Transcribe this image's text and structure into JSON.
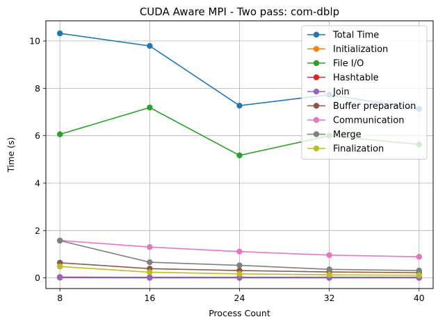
{
  "chart_data": {
    "type": "line",
    "title": "CUDA Aware MPI - Two pass: com-dblp",
    "xlabel": "Process Count",
    "ylabel": "Time (s)",
    "x": [
      8,
      16,
      24,
      32,
      40
    ],
    "xticks": [
      "8",
      "16",
      "24",
      "32",
      "40"
    ],
    "yticks": [
      "0",
      "2",
      "4",
      "6",
      "8",
      "10"
    ],
    "xlim": [
      6.75,
      41.25
    ],
    "ylim": [
      -0.45,
      10.85
    ],
    "grid": true,
    "legend_position": "top-right",
    "series": [
      {
        "name": "Total Time",
        "color": "#1f77b4",
        "values": [
          10.32,
          9.79,
          7.27,
          7.73,
          7.13
        ]
      },
      {
        "name": "Initialization",
        "color": "#ff7f0e",
        "values": [
          0.02,
          0.02,
          0.02,
          0.02,
          0.02
        ]
      },
      {
        "name": "File I/O",
        "color": "#2ca02c",
        "values": [
          6.06,
          7.19,
          5.17,
          6.0,
          5.63
        ]
      },
      {
        "name": "Hashtable",
        "color": "#d62728",
        "values": [
          0.03,
          0.02,
          0.02,
          0.02,
          0.02
        ]
      },
      {
        "name": "Join",
        "color": "#9467bd",
        "values": [
          0.01,
          0.0,
          0.0,
          0.0,
          0.0
        ]
      },
      {
        "name": "Buffer preparation",
        "color": "#8c564b",
        "values": [
          0.64,
          0.39,
          0.31,
          0.25,
          0.22
        ]
      },
      {
        "name": "Communication",
        "color": "#e377c2",
        "values": [
          1.58,
          1.3,
          1.11,
          0.96,
          0.89
        ]
      },
      {
        "name": "Merge",
        "color": "#7f7f7f",
        "values": [
          1.57,
          0.66,
          0.53,
          0.36,
          0.31
        ]
      },
      {
        "name": "Finalization",
        "color": "#bcbd22",
        "values": [
          0.48,
          0.24,
          0.17,
          0.13,
          0.11
        ]
      }
    ]
  }
}
